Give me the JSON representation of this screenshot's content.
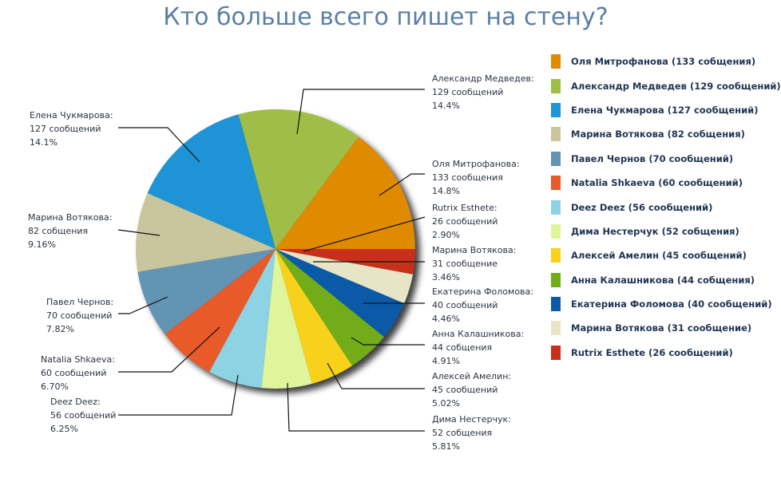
{
  "chart_data": {
    "type": "pie",
    "title": "Кто больше всего пишет на стену?",
    "legend_position": "right",
    "slices": [
      {
        "name": "Оля Митрофанова",
        "value": 133,
        "unit": "сообщения",
        "percent": "14.8%",
        "color": "#e08a00",
        "legend": "Оля Митрофанова (133 собщения)"
      },
      {
        "name": "Александр Медведев",
        "value": 129,
        "unit": "сообщений",
        "percent": "14.4%",
        "color": "#9fbd47",
        "legend": "Александр Медведев (129 сообщений)"
      },
      {
        "name": "Елена Чукмарова",
        "value": 127,
        "unit": "сообщений",
        "percent": "14.1%",
        "color": "#1e93d6",
        "legend": "Елена Чукмарова (127 сообщений)"
      },
      {
        "name": "Марина Вотякова",
        "value": 82,
        "unit": "собщения",
        "percent": "9.16%",
        "color": "#c9c69d",
        "legend": "Марина Вотякова (82 собщения)"
      },
      {
        "name": "Павел Чернов",
        "value": 70,
        "unit": "сообщений",
        "percent": "7.82%",
        "color": "#6494b3",
        "legend": "Павел Чернов (70 сообщений)"
      },
      {
        "name": "Natalia Shkaeva",
        "value": 60,
        "unit": "сообщений",
        "percent": "6.70%",
        "color": "#e85a2a",
        "legend": "Natalia Shkaeva (60 сообщений)"
      },
      {
        "name": "Deez Deez",
        "value": 56,
        "unit": "сообщений",
        "percent": "6.25%",
        "color": "#8dd3e4",
        "legend": "Deez Deez (56 сообщений)"
      },
      {
        "name": "Дима Нестерчук",
        "value": 52,
        "unit": "собщения",
        "percent": "5.81%",
        "color": "#def59b",
        "legend": "Дима Нестерчук (52 собщения)"
      },
      {
        "name": "Алексей Амелин",
        "value": 45,
        "unit": "сообщений",
        "percent": "5.02%",
        "color": "#f8d21a",
        "legend": "Алексей Амелин (45 сообщений)"
      },
      {
        "name": "Анна Калашникова",
        "value": 44,
        "unit": "собщения",
        "percent": "4.91%",
        "color": "#72ad19",
        "legend": "Анна Калашникова (44 собщения)"
      },
      {
        "name": "Екатерина Фоломова",
        "value": 40,
        "unit": "сообщений",
        "percent": "4.46%",
        "color": "#0b5aa8",
        "legend": "Екатерина Фоломова (40 сообщений)"
      },
      {
        "name": "Марина Вотякова",
        "value": 31,
        "unit": "сообщение",
        "percent": "3.46%",
        "color": "#e8e4c6",
        "legend": "Марина Вотякова (31 сообщение)"
      },
      {
        "name": "Rutrix Esthete",
        "value": 26,
        "unit": "сообщений",
        "percent": "2.90%",
        "color": "#c9301a",
        "legend": "Rutrix Esthete (26 сообщений)"
      }
    ]
  }
}
